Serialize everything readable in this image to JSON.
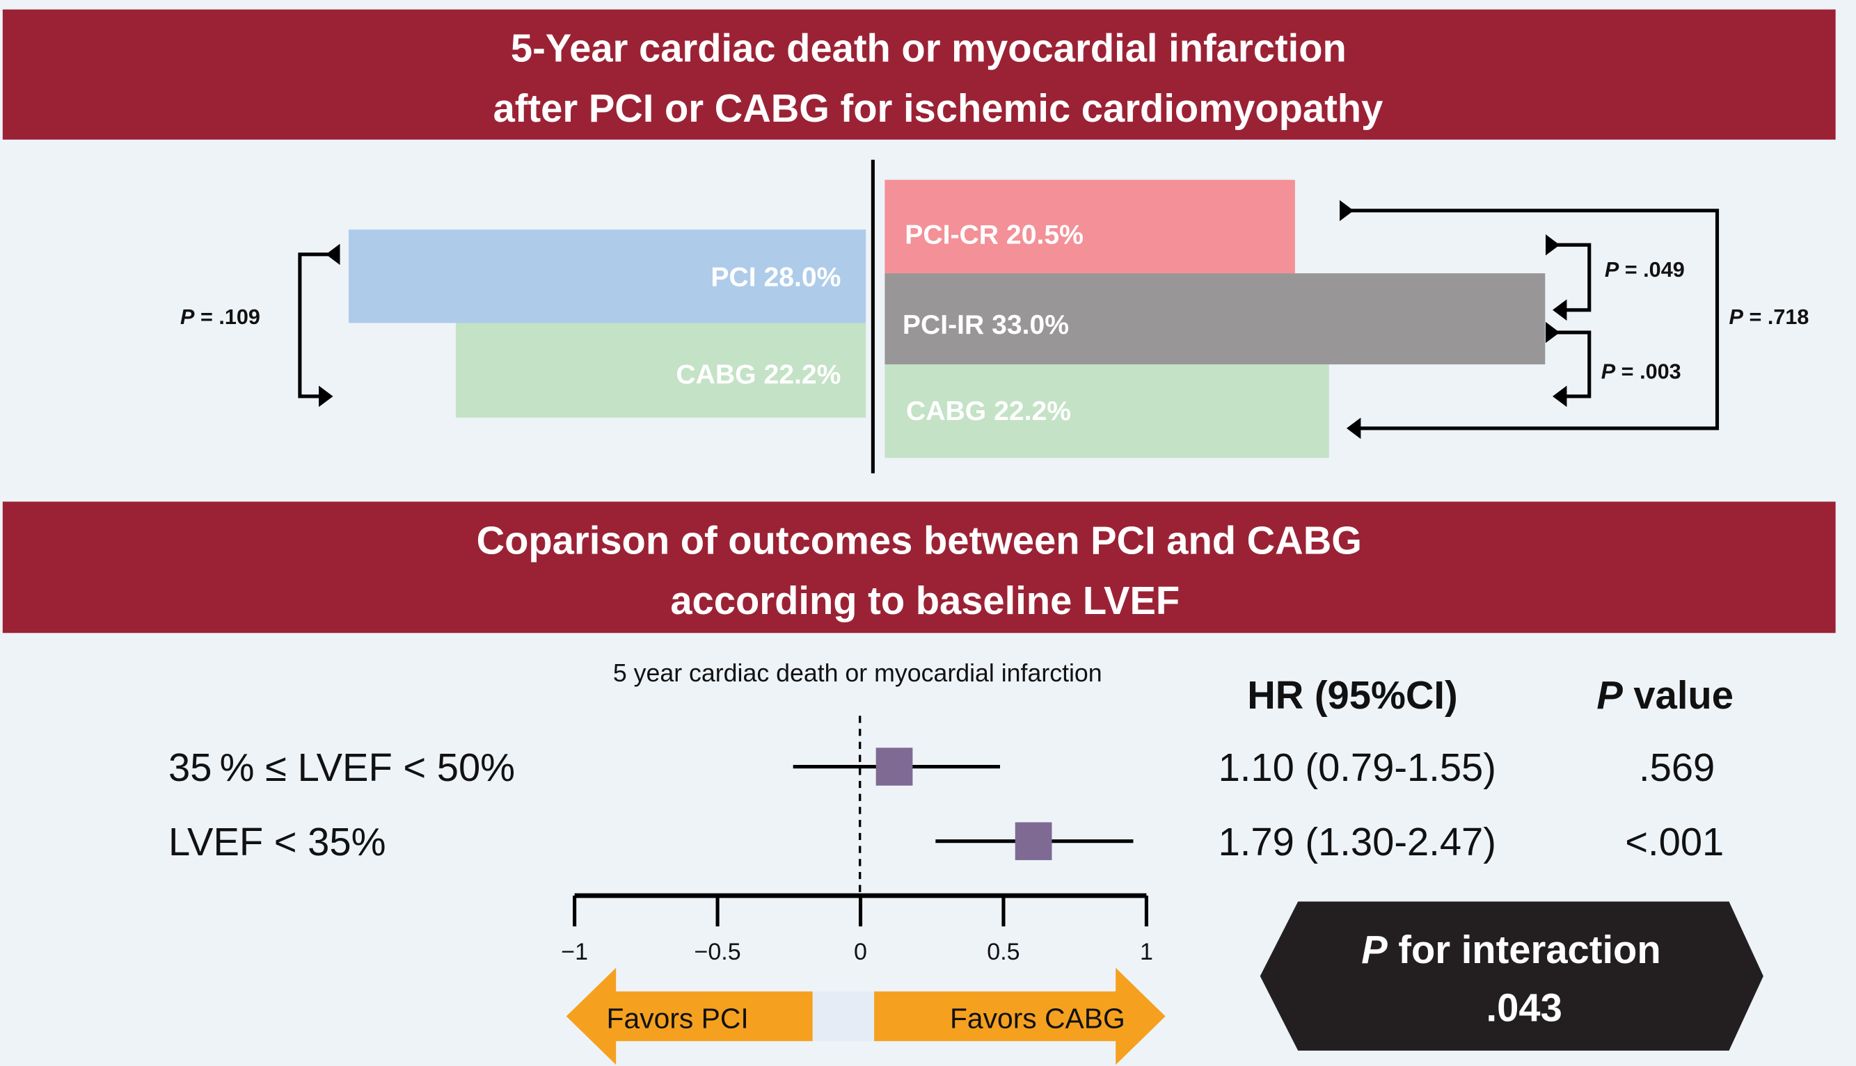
{
  "banner1": {
    "line1": "5-Year cardiac death or myocardial infarction",
    "line2": "after PCI or CABG for ischemic cardiomyopathy"
  },
  "banner2": {
    "line1": "Coparison of outcomes between PCI and CABG",
    "line2": "according to baseline LVEF"
  },
  "colors": {
    "banner": "#9b2235",
    "background": "#eef3f8",
    "pci": "#aecbea",
    "cabg": "#c4e2c6",
    "pci_cr": "#f49097",
    "pci_ir": "#989697",
    "marker": "#7f6a94",
    "arrow": "#f5a11f",
    "badge": "#231f20"
  },
  "chart_data": [
    {
      "type": "bar",
      "title": "5-Year cardiac death or myocardial infarction after PCI or CABG for ischemic cardiomyopathy",
      "left_group": [
        {
          "name": "PCI",
          "value": 28.0,
          "label": "PCI 28.0%"
        },
        {
          "name": "CABG",
          "value": 22.2,
          "label": "CABG 22.2%"
        }
      ],
      "right_group": [
        {
          "name": "PCI-CR",
          "value": 20.5,
          "label": "PCI-CR 20.5%"
        },
        {
          "name": "PCI-IR",
          "value": 33.0,
          "label": "PCI-IR 33.0%"
        },
        {
          "name": "CABG",
          "value": 22.2,
          "label": "CABG 22.2%"
        }
      ],
      "comparisons": [
        {
          "between": [
            "PCI",
            "CABG"
          ],
          "p": "P = .109",
          "p_prefix": "P",
          "p_value": " = .109"
        },
        {
          "between": [
            "PCI-CR",
            "PCI-IR"
          ],
          "p_prefix": "P",
          "p_value": " = .049"
        },
        {
          "between": [
            "PCI-IR",
            "CABG"
          ],
          "p_prefix": "P",
          "p_value": " = .003"
        },
        {
          "between": [
            "PCI-CR",
            "CABG"
          ],
          "p_prefix": "P",
          "p_value": " = .718"
        }
      ]
    },
    {
      "type": "forest",
      "title": "5 year cardiac death or myocardial infarction",
      "xlim": [
        -1,
        1
      ],
      "x_ticks": [
        -1,
        -0.5,
        0,
        0.5,
        1
      ],
      "x_tick_labels": [
        "−1",
        "−0.5",
        "0",
        "0.5",
        "1"
      ],
      "col_headers": {
        "hr": "HR (95%CI)",
        "p_prefix": "P",
        "p_suffix": " value"
      },
      "rows": [
        {
          "label": "35 % ≤ LVEF < 50%",
          "hr": 1.1,
          "lo": 0.79,
          "hi": 1.55,
          "hr_text": "1.10 (0.79-1.55)",
          "p_text": ".569"
        },
        {
          "label": "LVEF < 35%",
          "hr": 1.79,
          "lo": 1.3,
          "hi": 2.47,
          "hr_text": "1.79 (1.30-2.47)",
          "p_text": "<.001"
        }
      ],
      "favors_left": "Favors PCI",
      "favors_right": "Favors CABG",
      "interaction": {
        "prefix": "P",
        "label": " for interaction",
        "value": ".043"
      }
    }
  ]
}
